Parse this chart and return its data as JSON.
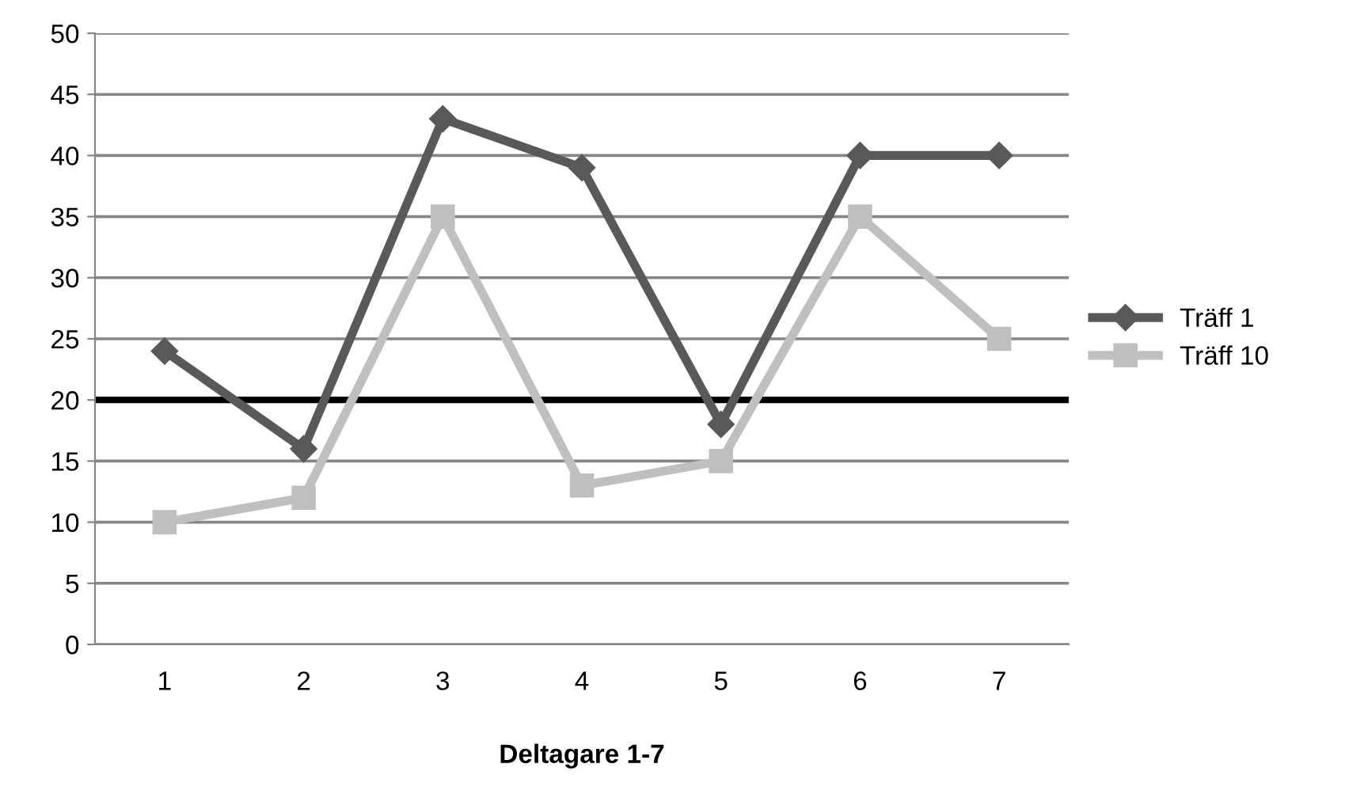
{
  "chart_data": {
    "type": "line",
    "xlabel": "Deltagare 1-7",
    "categories": [
      "1",
      "2",
      "3",
      "4",
      "5",
      "6",
      "7"
    ],
    "series": [
      {
        "name": "Träff 1",
        "color": "#595959",
        "marker": "diamond",
        "values": [
          24,
          16,
          43,
          39,
          18,
          40,
          40
        ]
      },
      {
        "name": "Träff 10",
        "color": "#bfbfbf",
        "marker": "square",
        "values": [
          10,
          12,
          35,
          13,
          15,
          35,
          25
        ]
      }
    ],
    "ylim": [
      0,
      50
    ],
    "yticks": [
      0,
      5,
      10,
      15,
      20,
      25,
      30,
      35,
      40,
      45,
      50
    ],
    "grid": "y",
    "legend": "right",
    "line_style": "solid",
    "ref_lines": [
      {
        "axis": "y",
        "value": 20,
        "color": "#000000",
        "line_style": "solid"
      }
    ]
  }
}
